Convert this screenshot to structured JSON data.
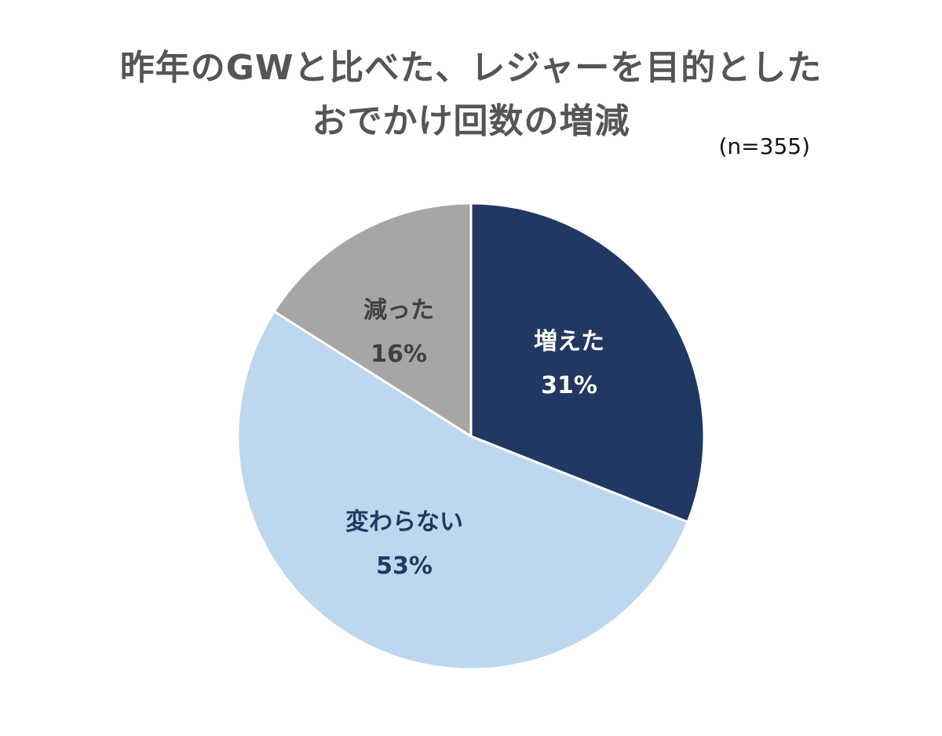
{
  "chart_data": {
    "type": "pie",
    "title_lines": [
      "昨年のGWと比べた、レジャーを目的とした",
      "おでかけ回数の増減"
    ],
    "note": "(n=355)",
    "slices": [
      {
        "label": "増えた",
        "value": 31,
        "display": "31%",
        "color": "#213862",
        "text_color": "#ffffff"
      },
      {
        "label": "変わらない",
        "value": 53,
        "display": "53%",
        "color": "#bdd7ee",
        "text_color": "#213862"
      },
      {
        "label": "減った",
        "value": 16,
        "display": "16%",
        "color": "#a6a6a6",
        "text_color": "#404040"
      }
    ],
    "start": "12 o'clock",
    "direction": "clockwise"
  }
}
